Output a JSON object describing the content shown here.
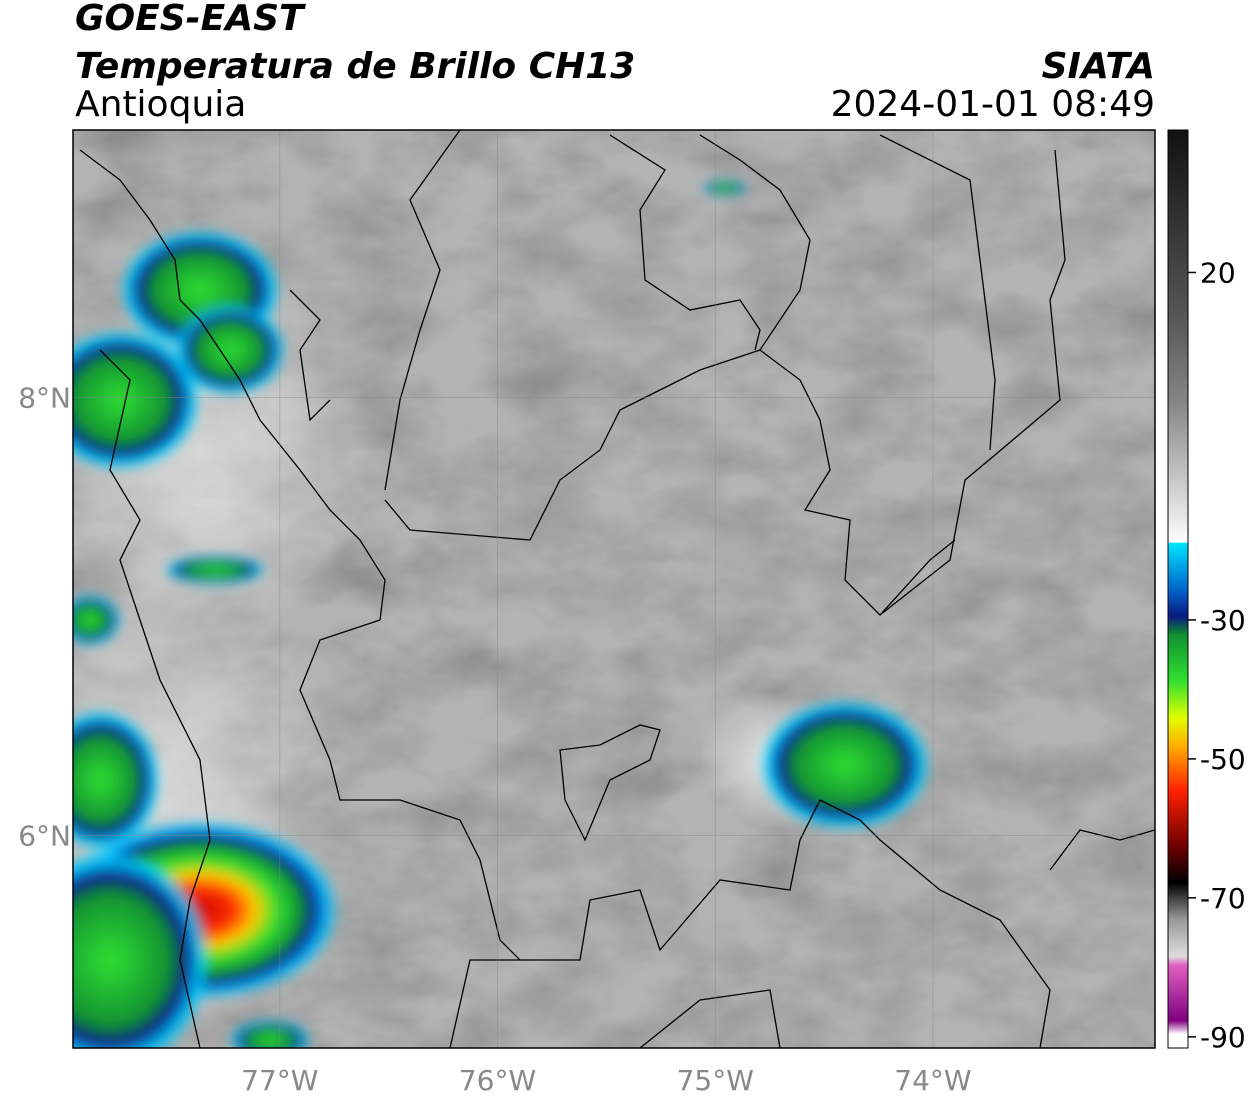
{
  "header": {
    "line1": "GOES-EAST",
    "line2": "Temperatura de Brillo CH13",
    "region": "Antioquia",
    "source": "SIATA",
    "datetime": "2024-01-01 08:49"
  },
  "map": {
    "xlim": [
      -77.95,
      -72.98
    ],
    "ylim": [
      5.03,
      9.22
    ],
    "xticks": [
      {
        "value": -77,
        "label": "77°W"
      },
      {
        "value": -76,
        "label": "76°W"
      },
      {
        "value": -75,
        "label": "75°W"
      },
      {
        "value": -74,
        "label": "74°W"
      }
    ],
    "yticks": [
      {
        "value": 6,
        "label": "6°N"
      },
      {
        "value": 8,
        "label": "8°N"
      }
    ],
    "grid": true,
    "colorbar": {
      "lim": [
        -91.6,
        40.5
      ],
      "ticks": [
        20,
        -30,
        -50,
        -70,
        -90
      ]
    }
  }
}
